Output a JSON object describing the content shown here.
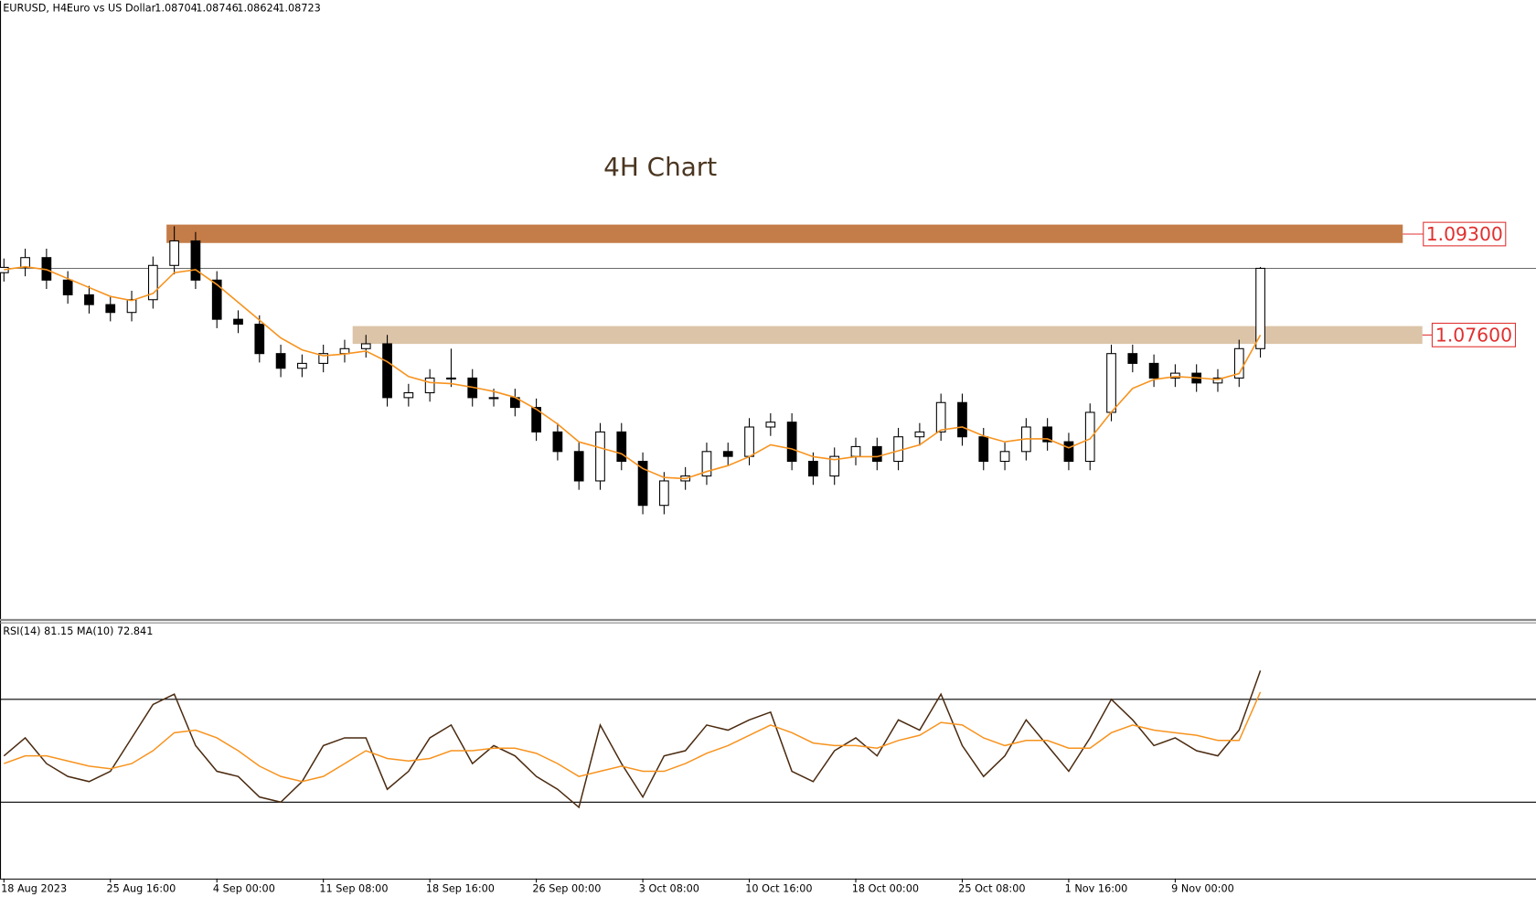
{
  "chart_data": {
    "type": "candlestick",
    "symbol": "EURUSD, H4:",
    "description": "Euro vs US Dollar",
    "ohlc": [
      1.08704,
      1.08746,
      1.08624,
      1.08723
    ],
    "title": "4H Chart",
    "categories": [
      "18 Aug 2023",
      null,
      null,
      null,
      null,
      "25 Aug 16:00",
      null,
      null,
      null,
      null,
      "4 Sep 00:00",
      null,
      null,
      null,
      null,
      "11 Sep 08:00",
      null,
      null,
      null,
      null,
      "18 Sep 16:00",
      null,
      null,
      null,
      null,
      "26 Sep 00:00",
      null,
      null,
      null,
      null,
      "3 Oct 08:00",
      null,
      null,
      null,
      null,
      "10 Oct 16:00",
      null,
      null,
      null,
      null,
      "18 Oct 00:00",
      null,
      null,
      null,
      null,
      "25 Oct 08:00",
      null,
      null,
      null,
      null,
      "1 Nov 16:00",
      null,
      null,
      null,
      null,
      "9 Nov 00:00",
      null,
      null,
      null,
      null
    ],
    "open": [
      1.0865,
      1.08739,
      1.08904,
      1.08525,
      1.08277,
      1.08112,
      1.0798,
      1.08195,
      1.08772,
      1.09185,
      1.08525,
      1.07865,
      1.07782,
      1.07287,
      1.0704,
      1.07122,
      1.07287,
      1.0737,
      1.07452,
      1.06545,
      1.06627,
      1.06875,
      1.06875,
      1.06545,
      1.06545,
      1.0638,
      1.05967,
      1.05637,
      1.05142,
      1.05967,
      1.05472,
      1.0473,
      1.05142,
      1.05225,
      1.05637,
      1.05555,
      1.0605,
      1.06132,
      1.05472,
      1.05225,
      1.05555,
      1.0572,
      1.05472,
      1.05885,
      1.05967,
      1.06462,
      1.05885,
      1.05472,
      1.05637,
      1.0605,
      1.05802,
      1.05472,
      1.06297,
      1.07287,
      1.07122,
      1.06875,
      1.06957,
      1.06792,
      1.06875,
      1.0737
    ],
    "high": [
      1.08889,
      1.09054,
      1.09054,
      1.08675,
      1.08427,
      1.08262,
      1.08345,
      1.08922,
      1.09432,
      1.09335,
      1.08675,
      1.08015,
      1.07932,
      1.07437,
      1.07272,
      1.07437,
      1.0752,
      1.07602,
      1.07602,
      1.06777,
      1.07025,
      1.0737,
      1.07025,
      1.06695,
      1.06695,
      1.0653,
      1.06117,
      1.05787,
      1.06117,
      1.06117,
      1.05622,
      1.05292,
      1.05375,
      1.05787,
      1.05787,
      1.062,
      1.06282,
      1.06282,
      1.05622,
      1.05705,
      1.0587,
      1.0587,
      1.06035,
      1.06117,
      1.06612,
      1.06612,
      1.06035,
      1.05787,
      1.062,
      1.062,
      1.05952,
      1.06447,
      1.07437,
      1.07437,
      1.07272,
      1.07107,
      1.07107,
      1.07025,
      1.0752,
      1.08746
    ],
    "low": [
      1.085,
      1.08589,
      1.08375,
      1.08127,
      1.07962,
      1.0783,
      1.0783,
      1.08045,
      1.08622,
      1.08375,
      1.07715,
      1.07632,
      1.07137,
      1.0689,
      1.0689,
      1.06972,
      1.07137,
      1.0722,
      1.06395,
      1.06395,
      1.06477,
      1.06725,
      1.06395,
      1.06395,
      1.0623,
      1.05817,
      1.05487,
      1.04992,
      1.04992,
      1.05322,
      1.0458,
      1.0458,
      1.04992,
      1.05075,
      1.05405,
      1.05405,
      1.059,
      1.05322,
      1.05075,
      1.05075,
      1.05405,
      1.05322,
      1.05322,
      1.05735,
      1.05817,
      1.05735,
      1.05322,
      1.05322,
      1.05487,
      1.05652,
      1.05322,
      1.05322,
      1.06147,
      1.06972,
      1.06725,
      1.06725,
      1.06642,
      1.06642,
      1.06725,
      1.0722
    ],
    "close": [
      1.08739,
      1.08904,
      1.08525,
      1.08277,
      1.08112,
      1.0798,
      1.08195,
      1.08772,
      1.09185,
      1.08525,
      1.07865,
      1.07782,
      1.07287,
      1.0704,
      1.07122,
      1.07287,
      1.0737,
      1.07452,
      1.06545,
      1.06627,
      1.06875,
      1.06875,
      1.06545,
      1.06545,
      1.0638,
      1.05967,
      1.05637,
      1.05142,
      1.05967,
      1.05472,
      1.0473,
      1.05142,
      1.05225,
      1.05637,
      1.05555,
      1.0605,
      1.06132,
      1.05472,
      1.05225,
      1.05555,
      1.0572,
      1.05472,
      1.05885,
      1.05967,
      1.06462,
      1.05885,
      1.05472,
      1.05637,
      1.0605,
      1.05802,
      1.05472,
      1.06297,
      1.07287,
      1.07122,
      1.06875,
      1.06957,
      1.06792,
      1.06875,
      1.0737,
      1.08723
    ],
    "ma": {
      "color": "#f7931e",
      "values": [
        1.087,
        1.0875,
        1.087,
        1.0855,
        1.084,
        1.0825,
        1.0818,
        1.083,
        1.0865,
        1.087,
        1.0845,
        1.0815,
        1.0785,
        1.0755,
        1.0735,
        1.0725,
        1.0728,
        1.0733,
        1.0715,
        1.069,
        1.068,
        1.0678,
        1.0672,
        1.0665,
        1.0655,
        1.0635,
        1.061,
        1.058,
        1.057,
        1.056,
        1.0535,
        1.052,
        1.0518,
        1.053,
        1.054,
        1.0555,
        1.0575,
        1.0568,
        1.0555,
        1.055,
        1.0555,
        1.0555,
        1.0565,
        1.0575,
        1.06,
        1.0605,
        1.059,
        1.058,
        1.0585,
        1.0585,
        1.057,
        1.0585,
        1.063,
        1.067,
        1.0685,
        1.069,
        1.0688,
        1.0685,
        1.0695,
        1.076
      ]
    },
    "ylim": [
      1.028,
      1.1323
    ],
    "zones": [
      {
        "value": 1.093,
        "label": "1.09300",
        "from": 1.0946,
        "to": 1.0915,
        "color": "#c47c48"
      },
      {
        "value": 1.076,
        "label": "1.07600",
        "from": 1.0775,
        "to": 1.0745,
        "color": "#dcc4a8"
      }
    ],
    "rsi": {
      "title": "RSI(14) 81.15 MA(10) 72.841",
      "ylim": [
        0,
        100
      ],
      "levels": [
        70,
        30
      ],
      "color": "#4a2a10",
      "ma_color": "#f7931e",
      "values": [
        48,
        55,
        45,
        40,
        38,
        42,
        55,
        68,
        72,
        52,
        42,
        40,
        32,
        30,
        38,
        52,
        55,
        55,
        35,
        42,
        55,
        60,
        45,
        52,
        48,
        40,
        35,
        28,
        60,
        45,
        32,
        48,
        50,
        60,
        58,
        62,
        65,
        42,
        38,
        50,
        55,
        48,
        62,
        58,
        72,
        52,
        40,
        48,
        62,
        52,
        42,
        55,
        70,
        62,
        52,
        55,
        50,
        48,
        58,
        81.15
      ],
      "ma_values": [
        45,
        48,
        48,
        46,
        44,
        43,
        45,
        50,
        57,
        58,
        55,
        50,
        44,
        40,
        38,
        40,
        45,
        50,
        47,
        46,
        47,
        50,
        50,
        51,
        51,
        49,
        45,
        40,
        42,
        44,
        42,
        42,
        45,
        49,
        52,
        56,
        60,
        57,
        53,
        52,
        52,
        51,
        54,
        56,
        61,
        60,
        55,
        52,
        54,
        54,
        51,
        51,
        57,
        60,
        58,
        57,
        56,
        54,
        54,
        72.841
      ]
    }
  }
}
